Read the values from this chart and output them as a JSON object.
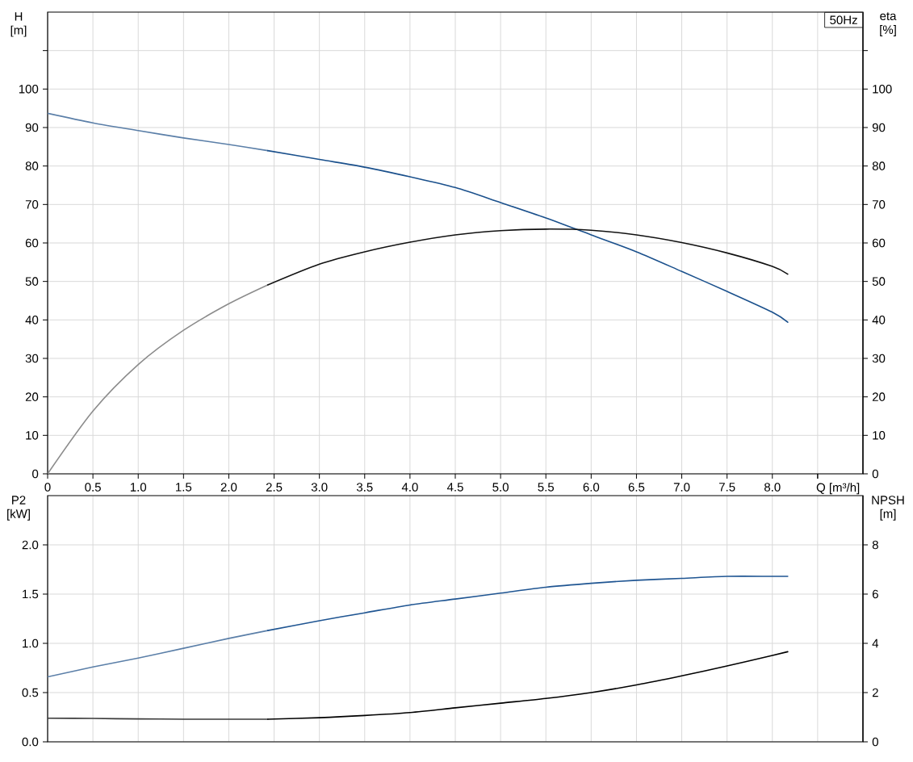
{
  "chart_data": [
    {
      "type": "line",
      "xlabel": "Q [m³/h]",
      "ylabel": "H [m]",
      "y2label": "eta [%]",
      "annotations": [
        "50Hz"
      ],
      "xlim": [
        0,
        9
      ],
      "xticks": [
        0,
        0.5,
        {
          "value": 1,
          "label": "1.0"
        },
        1.5,
        {
          "value": 2,
          "label": "2.0"
        },
        2.5,
        {
          "value": 3,
          "label": "3.0"
        },
        3.5,
        {
          "value": 4,
          "label": "4.0"
        },
        4.5,
        {
          "value": 5,
          "label": "5.0"
        },
        5.5,
        {
          "value": 6,
          "label": "6.0"
        },
        6.5,
        {
          "value": 7,
          "label": "7.0"
        },
        7.5,
        {
          "value": 8,
          "label": "8.0"
        },
        {
          "value": 8.5,
          "label": null
        }
      ],
      "ylim": [
        0,
        120
      ],
      "yticks": [
        0,
        10,
        20,
        30,
        40,
        50,
        60,
        70,
        80,
        90,
        100,
        {
          "value": 110,
          "label": null
        }
      ],
      "y2lim": [
        0,
        120
      ],
      "y2ticks": [
        0,
        10,
        20,
        30,
        40,
        50,
        60,
        70,
        80,
        90,
        100,
        {
          "value": 110,
          "label": null
        }
      ],
      "grid": true,
      "series": [
        {
          "color": "#5b7fa8",
          "x": [
            0,
            0.5,
            1,
            1.5,
            2,
            2.43
          ],
          "values": [
            93.7,
            91.2,
            89.2,
            87.3,
            85.6,
            84.0
          ]
        },
        {
          "color": "#1a508c",
          "x": [
            2.43,
            3,
            3.5,
            4,
            4.5,
            5,
            5.5,
            6,
            6.5,
            7,
            7.5,
            8,
            8.17
          ],
          "values": [
            84.0,
            81.7,
            79.7,
            77.2,
            74.4,
            70.5,
            66.5,
            62.1,
            57.7,
            52.6,
            47.4,
            42.0,
            39.4
          ]
        },
        {
          "color": "#8c8c8c",
          "axis": "y2",
          "x": [
            0,
            0.5,
            1,
            1.5,
            2,
            2.43
          ],
          "values": [
            0,
            16.3,
            28.4,
            37.3,
            44.2,
            49.1
          ]
        },
        {
          "color": "#111111",
          "axis": "y2",
          "x": [
            2.43,
            3,
            3.5,
            4,
            4.5,
            5,
            5.5,
            6,
            6.5,
            7,
            7.5,
            8,
            8.17
          ],
          "values": [
            49.1,
            54.5,
            57.7,
            60.2,
            62.1,
            63.2,
            63.6,
            63.3,
            62.1,
            60.1,
            57.4,
            53.9,
            51.9
          ]
        }
      ]
    },
    {
      "type": "line",
      "ylabel": "P2 [kW]",
      "y2label": "NPSH [m]",
      "tick_labels": "y",
      "xlim": [
        0,
        9
      ],
      "xticks": [
        0,
        0.5,
        1,
        1.5,
        2,
        2.5,
        3,
        3.5,
        4,
        4.5,
        5,
        5.5,
        6,
        6.5,
        7,
        7.5,
        8,
        8.5
      ],
      "ylim": [
        0,
        2.5
      ],
      "yticks": [
        {
          "value": 0,
          "label": "0.0"
        },
        0.5,
        {
          "value": 1,
          "label": "1.0"
        },
        1.5,
        {
          "value": 2,
          "label": "2.0"
        }
      ],
      "y2lim": [
        0,
        10
      ],
      "y2ticks": [
        0,
        2,
        4,
        6,
        8
      ],
      "grid": true,
      "series": [
        {
          "color": "#5b7fa8",
          "x": [
            0,
            0.5,
            1,
            1.5,
            2,
            2.43
          ],
          "values": [
            0.66,
            0.76,
            0.85,
            0.95,
            1.05,
            1.13
          ]
        },
        {
          "color": "#1f5592",
          "x": [
            2.43,
            3,
            3.5,
            4,
            4.5,
            5,
            5.5,
            6,
            6.5,
            7,
            7.5,
            8,
            8.17
          ],
          "values": [
            1.13,
            1.23,
            1.31,
            1.39,
            1.45,
            1.51,
            1.57,
            1.61,
            1.64,
            1.66,
            1.68,
            1.68,
            1.68
          ]
        },
        {
          "color": "#3a3a3a",
          "axis": "y2",
          "x": [
            0,
            0.5,
            1,
            1.5,
            2,
            2.43
          ],
          "values": [
            0.96,
            0.95,
            0.93,
            0.92,
            0.92,
            0.92
          ]
        },
        {
          "color": "#000000",
          "axis": "y2",
          "x": [
            2.43,
            3,
            3.5,
            4,
            4.5,
            5,
            5.5,
            6,
            6.5,
            7,
            7.5,
            8,
            8.17
          ],
          "values": [
            0.92,
            0.98,
            1.07,
            1.19,
            1.38,
            1.57,
            1.76,
            2.0,
            2.31,
            2.68,
            3.08,
            3.51,
            3.66
          ]
        }
      ]
    }
  ]
}
